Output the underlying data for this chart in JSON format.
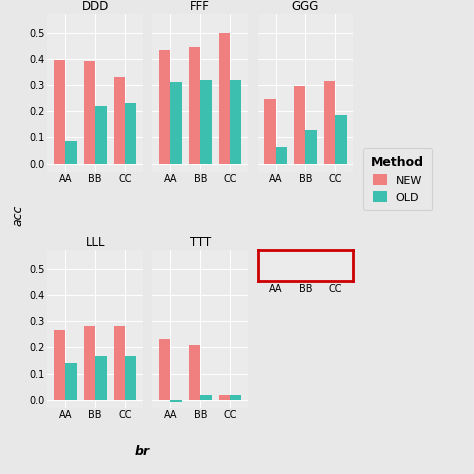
{
  "facets": [
    "DDD",
    "FFF",
    "GGG",
    "LLL",
    "TTT"
  ],
  "categories": [
    "AA",
    "BB",
    "CC"
  ],
  "color_new": "#F08080",
  "color_old": "#3DBFB0",
  "background_color": "#EBEBEB",
  "fig_background": "#E8E8E8",
  "grid_color": "#FFFFFF",
  "data": {
    "DDD": {
      "NEW": [
        0.395,
        0.39,
        0.33
      ],
      "OLD": [
        0.085,
        0.22,
        0.23
      ]
    },
    "FFF": {
      "NEW": [
        0.435,
        0.445,
        0.5
      ],
      "OLD": [
        0.31,
        0.32,
        0.32
      ]
    },
    "GGG": {
      "NEW": [
        0.245,
        0.295,
        0.315
      ],
      "OLD": [
        0.065,
        0.13,
        0.185
      ]
    },
    "LLL": {
      "NEW": [
        0.265,
        0.28,
        0.28
      ],
      "OLD": [
        0.14,
        0.165,
        0.165
      ]
    },
    "TTT": {
      "NEW": [
        0.23,
        0.21,
        0.02
      ],
      "OLD": [
        -0.01,
        0.02,
        0.02
      ]
    }
  },
  "ylabel": "acc",
  "xlabel": "br",
  "ylim": [
    -0.03,
    0.57
  ],
  "yticks": [
    0.0,
    0.1,
    0.2,
    0.3,
    0.4,
    0.5
  ],
  "bar_width": 0.38,
  "title_fontsize": 8.5,
  "tick_fontsize": 7,
  "label_fontsize": 9,
  "legend_title": "Method",
  "legend_labels": [
    "NEW",
    "OLD"
  ],
  "red_box_color": "#CC0000"
}
